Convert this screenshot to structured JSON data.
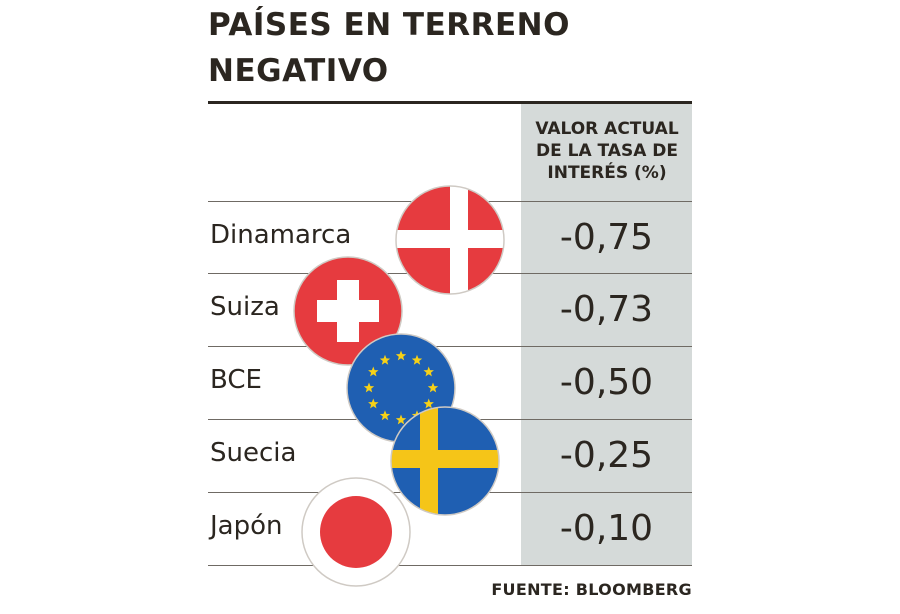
{
  "chart_data": {
    "type": "table",
    "title": "PAÍSES EN TERRENO NEGATIVO",
    "column_header": "VALOR ACTUAL DE LA TASA DE INTERÉS (%)",
    "categories": [
      "Dinamarca",
      "Suiza",
      "BCE",
      "Suecia",
      "Japón"
    ],
    "values": [
      -0.75,
      -0.73,
      -0.5,
      -0.25,
      -0.1
    ],
    "value_labels": [
      "-0,75",
      "-0,73",
      "-0,50",
      "-0,25",
      "-0,10"
    ],
    "flag_icons": [
      "denmark-flag-icon",
      "switzerland-flag-icon",
      "eu-flag-icon",
      "sweden-flag-icon",
      "japan-flag-icon"
    ],
    "source": "FUENTE: BLOOMBERG"
  },
  "colors": {
    "text": "#2b2620",
    "column_bg": "#d5dad9",
    "rule": "#2b2620",
    "row_line": "#6f6a64",
    "flag_red": "#e63b3f",
    "flag_white": "#ffffff",
    "eu_blue": "#1f5fb2",
    "eu_star": "#f7d117",
    "sweden_blue": "#1f5fb2",
    "sweden_yellow": "#f5c518"
  },
  "title_lines": [
    "PAÍSES EN TERRENO",
    "NEGATIVO"
  ],
  "column_header_lines": [
    "VALOR ACTUAL",
    "DE LA TASA DE",
    "INTERÉS (%)"
  ]
}
